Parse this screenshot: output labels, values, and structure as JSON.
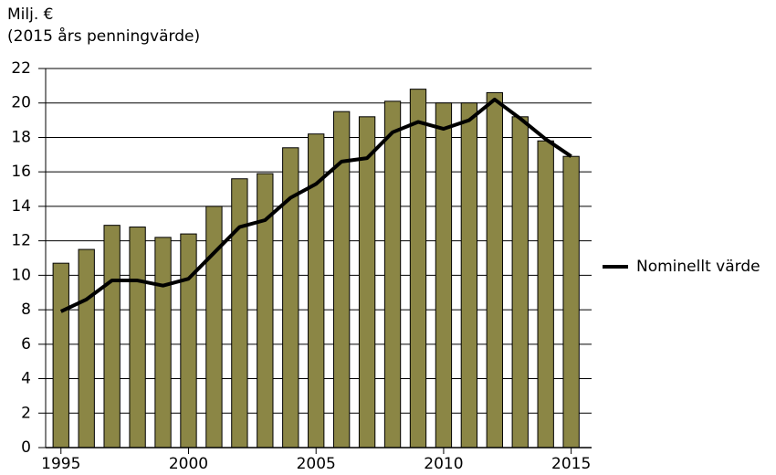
{
  "chart_data": {
    "type": "bar",
    "ylabel": [
      "Milj. €",
      "(2015 års penningvärde)"
    ],
    "x": [
      1995,
      1996,
      1997,
      1998,
      1999,
      2000,
      2001,
      2002,
      2003,
      2004,
      2005,
      2006,
      2007,
      2008,
      2009,
      2010,
      2011,
      2012,
      2013,
      2014,
      2015
    ],
    "series": [
      {
        "type": "bar",
        "color": "#8b8645",
        "values": [
          10.7,
          11.5,
          12.9,
          12.8,
          12.2,
          12.4,
          14.0,
          15.6,
          15.9,
          17.4,
          18.2,
          19.5,
          19.2,
          20.1,
          20.8,
          20.0,
          20.0,
          20.6,
          19.2,
          17.8,
          16.9
        ]
      },
      {
        "type": "line",
        "name": "Nominellt värde",
        "color": "#000000",
        "values": [
          7.9,
          8.6,
          9.7,
          9.7,
          9.4,
          9.8,
          11.3,
          12.8,
          13.2,
          14.5,
          15.3,
          16.6,
          16.8,
          18.3,
          18.9,
          18.5,
          19.0,
          20.2,
          19.1,
          17.9,
          16.9
        ]
      }
    ],
    "xlim": [
      1994.4,
      2015.8
    ],
    "xticks": [
      1995,
      2000,
      2005,
      2010,
      2015
    ],
    "ylim": [
      0,
      22
    ],
    "yticks": [
      0,
      2,
      4,
      6,
      8,
      10,
      12,
      14,
      16,
      18,
      20,
      22
    ],
    "grid": true,
    "legend": "right"
  }
}
